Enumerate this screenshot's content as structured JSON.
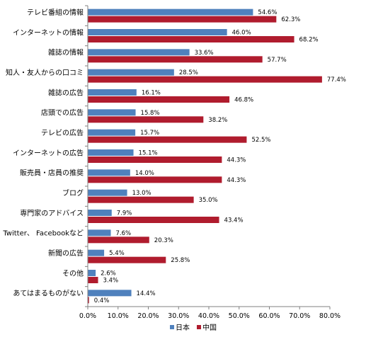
{
  "chart_data": {
    "type": "bar",
    "orientation": "horizontal",
    "categories": [
      "テレビ番組の情報",
      "インターネットの情報",
      "雑誌の情報",
      "知人・友人からの口コミ",
      "雑誌の広告",
      "店頭での広告",
      "テレビの広告",
      "インターネットの広告",
      "販売員・店員の推奨",
      "ブログ",
      "専門家のアドバイス",
      "Twitter、 Facebookなど",
      "新聞の広告",
      "その他",
      "あてはまるものがない"
    ],
    "series": [
      {
        "name": "日本",
        "color": "#4F81BD",
        "values": [
          54.6,
          46.0,
          33.6,
          28.5,
          16.1,
          15.8,
          15.7,
          15.1,
          14.0,
          13.0,
          7.9,
          7.6,
          5.4,
          2.6,
          14.4
        ],
        "labels": [
          "54.6%",
          "46.0%",
          "33.6%",
          "28.5%",
          "16.1%",
          "15.8%",
          "15.7%",
          "15.1%",
          "14.0%",
          "13.0%",
          "7.9%",
          "7.6%",
          "5.4%",
          "2.6%",
          "14.4%"
        ]
      },
      {
        "name": "中国",
        "color": "#B01C2E",
        "values": [
          62.3,
          68.2,
          57.7,
          77.4,
          46.8,
          38.2,
          52.5,
          44.3,
          44.3,
          35.0,
          43.4,
          20.3,
          25.8,
          3.4,
          0.4
        ],
        "labels": [
          "62.3%",
          "68.2%",
          "57.7%",
          "77.4%",
          "46.8%",
          "38.2%",
          "52.5%",
          "44.3%",
          "44.3%",
          "35.0%",
          "43.4%",
          "20.3%",
          "25.8%",
          "3.4%",
          "0.4%"
        ]
      }
    ],
    "xlim": [
      0,
      80
    ],
    "xticks": [
      "0.0%",
      "10.0%",
      "20.0%",
      "30.0%",
      "40.0%",
      "50.0%",
      "60.0%",
      "70.0%",
      "80.0%"
    ],
    "grid": false,
    "legend_position": "bottom"
  }
}
